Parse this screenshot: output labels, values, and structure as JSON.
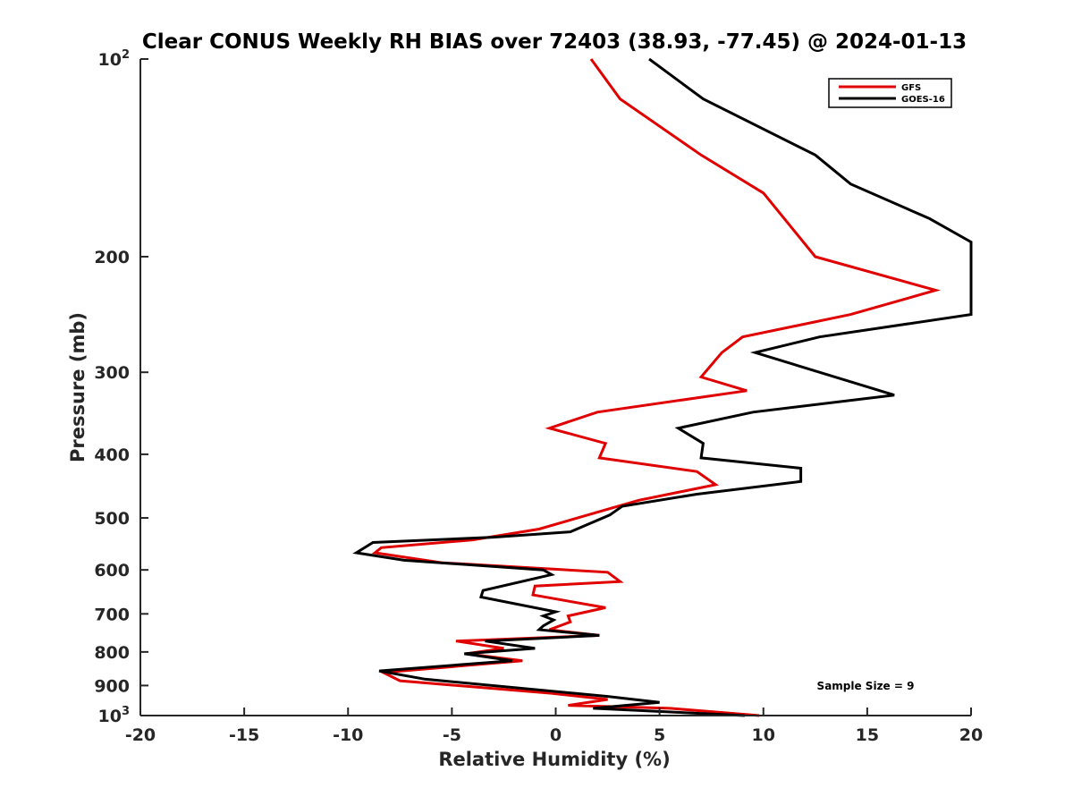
{
  "chart_data": {
    "type": "line",
    "title": "Clear CONUS Weekly RH BIAS over 72403 (38.93, -77.45) @ 2024-01-13",
    "xlabel": "Relative Humidity (%)",
    "ylabel": "Pressure (mb)",
    "xlim": [
      -20,
      20
    ],
    "ylim": [
      100,
      1000
    ],
    "y_scale": "log",
    "y_reversed": true,
    "grid": false,
    "legend_position": "top-right",
    "x_ticks": [
      "-20",
      "-15",
      "-10",
      "-5",
      "0",
      "5",
      "10",
      "15",
      "20"
    ],
    "y_ticks": [
      {
        "value": 100,
        "base": "10",
        "exp": "2"
      },
      {
        "value": 200,
        "base": "200",
        "exp": ""
      },
      {
        "value": 300,
        "base": "300",
        "exp": ""
      },
      {
        "value": 400,
        "base": "400",
        "exp": ""
      },
      {
        "value": 500,
        "base": "500",
        "exp": ""
      },
      {
        "value": 600,
        "base": "600",
        "exp": ""
      },
      {
        "value": 700,
        "base": "700",
        "exp": ""
      },
      {
        "value": 800,
        "base": "800",
        "exp": ""
      },
      {
        "value": 900,
        "base": "900",
        "exp": ""
      },
      {
        "value": 1000,
        "base": "10",
        "exp": "3"
      }
    ],
    "annotation": "Sample Size = 9",
    "series": [
      {
        "name": "GFS",
        "color": "#e00000",
        "points": [
          [
            1.7,
            100
          ],
          [
            3.1,
            115
          ],
          [
            7.0,
            140
          ],
          [
            10.0,
            160
          ],
          [
            12.5,
            200
          ],
          [
            18.3,
            225
          ],
          [
            14.2,
            245
          ],
          [
            9.0,
            265
          ],
          [
            8.0,
            280
          ],
          [
            7.0,
            305
          ],
          [
            9.2,
            320
          ],
          [
            2.0,
            345
          ],
          [
            -0.3,
            365
          ],
          [
            2.4,
            385
          ],
          [
            2.1,
            405
          ],
          [
            6.8,
            425
          ],
          [
            7.7,
            445
          ],
          [
            4.0,
            470
          ],
          [
            2.5,
            485
          ],
          [
            -0.8,
            520
          ],
          [
            -4.0,
            540
          ],
          [
            -8.4,
            555
          ],
          [
            -8.7,
            565
          ],
          [
            -5.5,
            585
          ],
          [
            2.5,
            605
          ],
          [
            3.1,
            625
          ],
          [
            -1.0,
            635
          ],
          [
            -1.1,
            655
          ],
          [
            2.4,
            685
          ],
          [
            0.6,
            705
          ],
          [
            0.7,
            720
          ],
          [
            -0.3,
            740
          ],
          [
            0.5,
            745
          ],
          [
            2.1,
            755
          ],
          [
            -4.8,
            770
          ],
          [
            -2.5,
            790
          ],
          [
            -4.3,
            805
          ],
          [
            -1.6,
            825
          ],
          [
            -8.3,
            860
          ],
          [
            -7.5,
            885
          ],
          [
            -0.2,
            925
          ],
          [
            2.5,
            945
          ],
          [
            0.6,
            965
          ],
          [
            5.5,
            975
          ],
          [
            9.8,
            1000
          ]
        ]
      },
      {
        "name": "GOES-16",
        "color": "#000000",
        "points": [
          [
            4.5,
            100
          ],
          [
            7.1,
            115
          ],
          [
            12.5,
            140
          ],
          [
            14.2,
            155
          ],
          [
            18.0,
            175
          ],
          [
            20.0,
            190
          ],
          [
            20.0,
            245
          ],
          [
            12.7,
            265
          ],
          [
            9.6,
            280
          ],
          [
            16.3,
            325
          ],
          [
            9.5,
            345
          ],
          [
            5.9,
            365
          ],
          [
            7.1,
            385
          ],
          [
            7.0,
            405
          ],
          [
            11.8,
            420
          ],
          [
            11.8,
            440
          ],
          [
            6.8,
            460
          ],
          [
            3.2,
            480
          ],
          [
            2.6,
            495
          ],
          [
            0.7,
            525
          ],
          [
            -3.0,
            535
          ],
          [
            -8.8,
            545
          ],
          [
            -9.6,
            565
          ],
          [
            -7.3,
            580
          ],
          [
            -0.6,
            600
          ],
          [
            -0.2,
            610
          ],
          [
            -3.5,
            645
          ],
          [
            -3.6,
            660
          ],
          [
            0.0,
            695
          ],
          [
            -0.6,
            705
          ],
          [
            -0.1,
            715
          ],
          [
            -0.6,
            730
          ],
          [
            -0.8,
            740
          ],
          [
            2.1,
            755
          ],
          [
            -3.4,
            770
          ],
          [
            -1.0,
            790
          ],
          [
            -4.4,
            805
          ],
          [
            -2.1,
            825
          ],
          [
            -8.5,
            855
          ],
          [
            -6.3,
            880
          ],
          [
            2.5,
            935
          ],
          [
            5.0,
            955
          ],
          [
            1.8,
            975
          ],
          [
            9.1,
            1000
          ]
        ]
      }
    ]
  }
}
